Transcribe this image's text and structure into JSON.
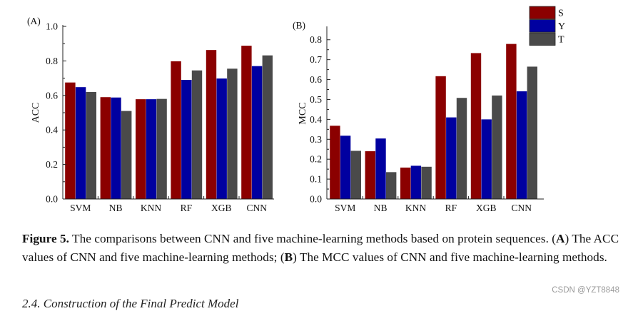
{
  "colors": {
    "S": "#8b0000",
    "Y": "#0000a0",
    "T": "#4a4a4a"
  },
  "chart_data": [
    {
      "type": "bar",
      "panel_label": "(A)",
      "categories": [
        "SVM",
        "NB",
        "KNN",
        "RF",
        "XGB",
        "CNN"
      ],
      "series": [
        {
          "name": "S",
          "values": [
            0.675,
            0.59,
            0.578,
            0.798,
            0.863,
            0.888
          ]
        },
        {
          "name": "Y",
          "values": [
            0.648,
            0.588,
            0.578,
            0.69,
            0.698,
            0.77
          ]
        },
        {
          "name": "T",
          "values": [
            0.62,
            0.51,
            0.58,
            0.745,
            0.755,
            0.832
          ]
        }
      ],
      "ylabel": "ACC",
      "ylim": [
        0.0,
        1.0
      ],
      "yticks": [
        "0.0",
        "0.2",
        "0.4",
        "0.6",
        "0.8",
        "1.0"
      ],
      "grid": false,
      "legend": null
    },
    {
      "type": "bar",
      "panel_label": "(B)",
      "categories": [
        "SVM",
        "NB",
        "KNN",
        "RF",
        "XGB",
        "CNN"
      ],
      "series": [
        {
          "name": "S",
          "values": [
            0.368,
            0.24,
            0.158,
            0.617,
            0.733,
            0.779
          ]
        },
        {
          "name": "Y",
          "values": [
            0.318,
            0.304,
            0.167,
            0.41,
            0.4,
            0.541
          ]
        },
        {
          "name": "T",
          "values": [
            0.242,
            0.135,
            0.162,
            0.508,
            0.52,
            0.665
          ]
        }
      ],
      "ylabel": "MCC",
      "ylim": [
        0.0,
        0.86
      ],
      "yticks": [
        "0.0",
        "0.1",
        "0.2",
        "0.3",
        "0.4",
        "0.5",
        "0.6",
        "0.7",
        "0.8"
      ],
      "grid": false,
      "legend": "top-right"
    }
  ],
  "caption": {
    "figure_label": "Figure 5.",
    "lead": " The comparisons between CNN and five machine-learning methods based on protein sequences. (",
    "a_label": "A",
    "a_text": ") The ACC values of CNN and five machine-learning methods; (",
    "b_label": "B",
    "b_text": ") The MCC values of CNN and five machine-learning methods."
  },
  "cut_heading": "2.4. Construction of the Final Predict Model",
  "watermark": "CSDN @YZT8848"
}
